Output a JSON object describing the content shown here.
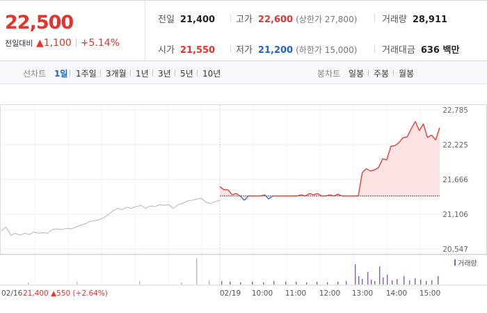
{
  "header": {
    "price": "22,500",
    "prev_label": "전일대비",
    "change": "1,100",
    "change_pct": "+5.14%",
    "stats": [
      {
        "label": "전일",
        "value": "21,400",
        "cls": ""
      },
      {
        "label": "고가",
        "value": "22,600",
        "cls": "up",
        "sub": "(상한가 27,800)"
      },
      {
        "label": "거래량",
        "value": "28,911",
        "cls": ""
      },
      {
        "label": "시가",
        "value": "21,550",
        "cls": "up"
      },
      {
        "label": "저가",
        "value": "21,200",
        "cls": "dn",
        "sub": "(하한가 15,000)"
      },
      {
        "label": "거래대금",
        "value": "636 백만",
        "cls": ""
      }
    ]
  },
  "tabs": {
    "line_label": "선차트",
    "line_options": [
      "1일",
      "1주일",
      "3개월",
      "1년",
      "3년",
      "5년",
      "10년"
    ],
    "line_active": "1일",
    "candle_label": "봉차트",
    "candle_options": [
      "일봉",
      "주봉",
      "월봉"
    ]
  },
  "chart_data": {
    "type": "line",
    "y_ticks": [
      "22,785",
      "22,225",
      "21,666",
      "21,106",
      "20,547"
    ],
    "ylim": [
      20547,
      22785
    ],
    "prev_close": 21400,
    "prev_day_label": "02/16",
    "prev_day_summary": {
      "close": "21,400",
      "change": "550",
      "pct": "(+2.64%)"
    },
    "x_labels": [
      "02/19",
      "10:00",
      "11:00",
      "12:00",
      "13:00",
      "14:00",
      "15:00"
    ],
    "volume_legend": "거래량",
    "prev_day_series": [
      20840,
      20900,
      20770,
      20800,
      20770,
      20800,
      20780,
      20820,
      20800,
      20810,
      20800,
      20860,
      20870,
      20860,
      20880,
      20870,
      20900,
      20930,
      20950,
      20990,
      21000,
      21020,
      21050,
      21100,
      21160,
      21200,
      21180,
      21220,
      21200,
      21230,
      21250,
      21200,
      21240,
      21230,
      21260,
      21250,
      21260,
      21200,
      21260,
      21280,
      21320,
      21330,
      21350,
      21360,
      21300,
      21280,
      21310,
      21330
    ],
    "today_series": [
      21550,
      21500,
      21500,
      21420,
      21440,
      21400,
      21330,
      21400,
      21400,
      21400,
      21400,
      21420,
      21350,
      21400,
      21400,
      21400,
      21400,
      21400,
      21400,
      21400,
      21420,
      21400,
      21440,
      21420,
      21440,
      21400,
      21400,
      21420,
      21400,
      21430,
      21400,
      21400,
      21400,
      21400,
      21400,
      21780,
      21840,
      21800,
      21820,
      21860,
      22000,
      21980,
      22200,
      22210,
      22260,
      22340,
      22350,
      22480,
      22600,
      22450,
      22560,
      22340,
      22380,
      22300,
      22500
    ]
  }
}
